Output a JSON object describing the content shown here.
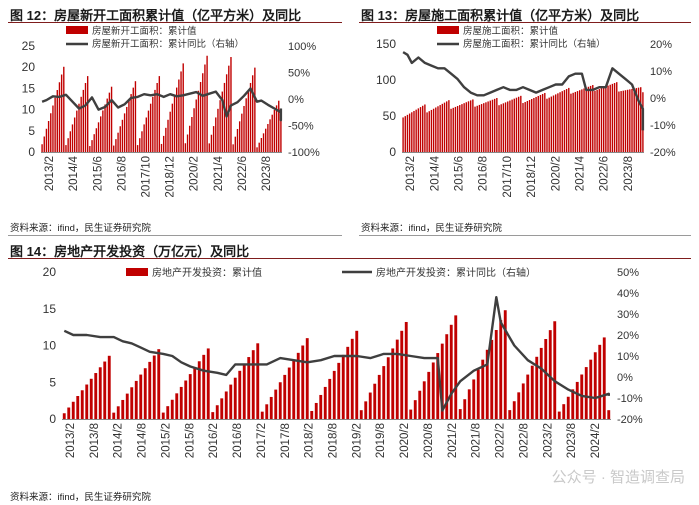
{
  "panels": {
    "p12": {
      "title": "图 12：房屋新开工面积累计值（亿平方米）及同比",
      "source": "资料来源：ifind，民生证券研究院"
    },
    "p13": {
      "title": "图 13：房屋施工面积累计值（亿平方米）及同比",
      "source": "资料来源：ifind，民生证券研究院"
    },
    "p14": {
      "title": "图 14：房地产开发投资（万亿元）及同比",
      "source": "资料来源：ifind，民生证券研究院"
    }
  },
  "watermark": "公众号 · 智造调查局",
  "colors": {
    "bar": "#c00000",
    "line": "#3f3f3f",
    "title_rule": "#7f1d1d"
  },
  "chart_data": [
    {
      "id": "new_starts",
      "type": "bar",
      "title": "图 12：房屋新开工面积累计值（亿平方米）及同比",
      "legend_position": "top",
      "x_tick_labels": [
        "2013/2",
        "2014/4",
        "2015/6",
        "2016/8",
        "2017/10",
        "2018/12",
        "2020/2",
        "2021/4",
        "2022/6",
        "2023/8"
      ],
      "y_left": {
        "ticks": [
          "0",
          "5",
          "10",
          "15",
          "20",
          "25"
        ],
        "range": [
          0,
          25
        ]
      },
      "y_right": {
        "ticks": [
          "-100%",
          "-50%",
          "0%",
          "50%",
          "100%"
        ],
        "range": [
          -100,
          100
        ]
      },
      "series": [
        {
          "name": "房屋新开工面积：累计值",
          "kind": "bar",
          "axis": "left",
          "annual_peaks": [
            20.1,
            17.9,
            15.4,
            16.7,
            17.9,
            20.9,
            22.7,
            22.4,
            19.9,
            12.1,
            9.5
          ],
          "last_year_months": 1
        },
        {
          "name": "房屋新开工面积：累计同比（右轴）",
          "kind": "line",
          "axis": "right",
          "points": [
            [
              0,
              -5
            ],
            [
              2,
              -2
            ],
            [
              5,
              5
            ],
            [
              8,
              4
            ],
            [
              11,
              8
            ],
            [
              14,
              -5
            ],
            [
              17,
              -18
            ],
            [
              20,
              -12
            ],
            [
              23,
              3
            ],
            [
              26,
              -20
            ],
            [
              29,
              -15
            ],
            [
              32,
              -2
            ],
            [
              35,
              -16
            ],
            [
              38,
              -10
            ],
            [
              41,
              2
            ],
            [
              44,
              4
            ],
            [
              47,
              9
            ],
            [
              50,
              7
            ],
            [
              53,
              9
            ],
            [
              56,
              4
            ],
            [
              59,
              9
            ],
            [
              62,
              5
            ],
            [
              65,
              7
            ],
            [
              68,
              10
            ],
            [
              71,
              13
            ],
            [
              74,
              6
            ],
            [
              77,
              10
            ],
            [
              80,
              14
            ],
            [
              83,
              -2
            ],
            [
              85,
              -33
            ],
            [
              87,
              -12
            ],
            [
              90,
              -6
            ],
            [
              93,
              6
            ],
            [
              96,
              20
            ],
            [
              99,
              -5
            ],
            [
              101,
              -3
            ],
            [
              104,
              -11
            ],
            [
              107,
              -18
            ],
            [
              110,
              -25
            ],
            [
              113,
              -38
            ],
            [
              116,
              -40
            ],
            [
              119,
              -20
            ],
            [
              122,
              -22
            ],
            [
              125,
              -24
            ],
            [
              128,
              -21
            ],
            [
              130,
              -18
            ]
          ]
        }
      ]
    },
    {
      "id": "under_construction",
      "type": "bar",
      "title": "图 13：房屋施工面积累计值（亿平方米）及同比",
      "legend_position": "top",
      "x_tick_labels": [
        "2013/2",
        "2014/4",
        "2015/6",
        "2016/8",
        "2017/10",
        "2018/12",
        "2020/2",
        "2021/4",
        "2022/6",
        "2023/8"
      ],
      "y_left": {
        "ticks": [
          "0",
          "50",
          "100",
          "150"
        ],
        "range": [
          0,
          150
        ]
      },
      "y_right": {
        "ticks": [
          "-20%",
          "-10%",
          "0%",
          "10%",
          "20%"
        ],
        "range": [
          -20,
          20
        ]
      },
      "series": [
        {
          "name": "房屋施工面积：累计值",
          "kind": "bar",
          "axis": "left",
          "annual_start": [
            48,
            55,
            60,
            63,
            65,
            68,
            74,
            81,
            85,
            84,
            83
          ],
          "annual_end": [
            66,
            72,
            73,
            75,
            78,
            82,
            89,
            93,
            97,
            90,
            84
          ],
          "last_year_months": 1
        },
        {
          "name": "房屋施工面积：累计同比（右轴）",
          "kind": "line",
          "axis": "right",
          "points": [
            [
              0,
              17
            ],
            [
              2,
              16
            ],
            [
              4,
              13
            ],
            [
              7,
              15
            ],
            [
              10,
              13
            ],
            [
              13,
              12
            ],
            [
              16,
              11
            ],
            [
              19,
              11
            ],
            [
              22,
              9
            ],
            [
              25,
              7
            ],
            [
              28,
              4
            ],
            [
              31,
              2
            ],
            [
              34,
              1
            ],
            [
              37,
              1
            ],
            [
              40,
              2
            ],
            [
              43,
              3
            ],
            [
              46,
              4
            ],
            [
              49,
              3
            ],
            [
              52,
              3
            ],
            [
              55,
              4
            ],
            [
              58,
              3
            ],
            [
              61,
              2
            ],
            [
              64,
              3
            ],
            [
              67,
              4
            ],
            [
              70,
              5
            ],
            [
              73,
              5
            ],
            [
              76,
              8
            ],
            [
              79,
              9
            ],
            [
              82,
              9
            ],
            [
              84,
              3
            ],
            [
              87,
              3
            ],
            [
              90,
              4
            ],
            [
              93,
              4
            ],
            [
              96,
              11
            ],
            [
              99,
              9
            ],
            [
              102,
              7
            ],
            [
              105,
              5
            ],
            [
              108,
              -1
            ],
            [
              111,
              -4
            ],
            [
              114,
              -6
            ],
            [
              117,
              -7
            ],
            [
              120,
              -7
            ],
            [
              123,
              -7
            ],
            [
              126,
              -8
            ],
            [
              129,
              -9
            ],
            [
              131,
              -12
            ]
          ]
        }
      ]
    },
    {
      "id": "investment",
      "type": "bar",
      "title": "图 14：房地产开发投资（万亿元）及同比",
      "legend_position": "top",
      "x_tick_labels": [
        "2013/2",
        "2013/8",
        "2014/2",
        "2014/8",
        "2015/2",
        "2015/8",
        "2016/2",
        "2016/8",
        "2017/2",
        "2017/8",
        "2018/2",
        "2018/8",
        "2019/2",
        "2019/8",
        "2020/2",
        "2020/8",
        "2021/2",
        "2021/8",
        "2022/2",
        "2022/8",
        "2023/2",
        "2023/8",
        "2024/2"
      ],
      "y_left": {
        "ticks": [
          "0",
          "5",
          "10",
          "15",
          "20"
        ],
        "range": [
          0,
          20
        ]
      },
      "y_right": {
        "ticks": [
          "-20%",
          "-10%",
          "0%",
          "10%",
          "20%",
          "30%",
          "40%",
          "50%"
        ],
        "range": [
          -20,
          50
        ]
      },
      "series": [
        {
          "name": "房地产开发投资：累计值",
          "kind": "bar",
          "axis": "left",
          "annual_peaks": [
            8.6,
            9.5,
            9.6,
            10.3,
            11.0,
            12.0,
            13.2,
            14.1,
            14.8,
            13.3,
            11.1,
            1.2
          ],
          "last_year_months": 1
        },
        {
          "name": "房地产开发投资：累计同比（右轴）",
          "kind": "line",
          "axis": "right",
          "points": [
            [
              0,
              22
            ],
            [
              2,
              20
            ],
            [
              5,
              20
            ],
            [
              8,
              19
            ],
            [
              11,
              19
            ],
            [
              13,
              17
            ],
            [
              15,
              16
            ],
            [
              17,
              14
            ],
            [
              19,
              12
            ],
            [
              22,
              11
            ],
            [
              24,
              10
            ],
            [
              26,
              7
            ],
            [
              28,
              5
            ],
            [
              31,
              3
            ],
            [
              34,
              2
            ],
            [
              36,
              1
            ],
            [
              38,
              6
            ],
            [
              40,
              6
            ],
            [
              42,
              6
            ],
            [
              45,
              6
            ],
            [
              48,
              9
            ],
            [
              51,
              8
            ],
            [
              54,
              7
            ],
            [
              57,
              8
            ],
            [
              60,
              10
            ],
            [
              62,
              10
            ],
            [
              65,
              10
            ],
            [
              68,
              9
            ],
            [
              71,
              11
            ],
            [
              74,
              11
            ],
            [
              77,
              10
            ],
            [
              80,
              9
            ],
            [
              83,
              9
            ],
            [
              84,
              -16
            ],
            [
              86,
              -8
            ],
            [
              88,
              -2
            ],
            [
              91,
              3
            ],
            [
              94,
              6
            ],
            [
              96,
              38
            ],
            [
              97,
              26
            ],
            [
              100,
              15
            ],
            [
              103,
              8
            ],
            [
              106,
              4
            ],
            [
              109,
              -2
            ],
            [
              112,
              -6
            ],
            [
              115,
              -9
            ],
            [
              118,
              -10
            ],
            [
              121,
              -8
            ],
            [
              124,
              -9
            ],
            [
              127,
              -9
            ],
            [
              130,
              -9
            ],
            [
              132,
              -9
            ]
          ]
        }
      ]
    }
  ]
}
